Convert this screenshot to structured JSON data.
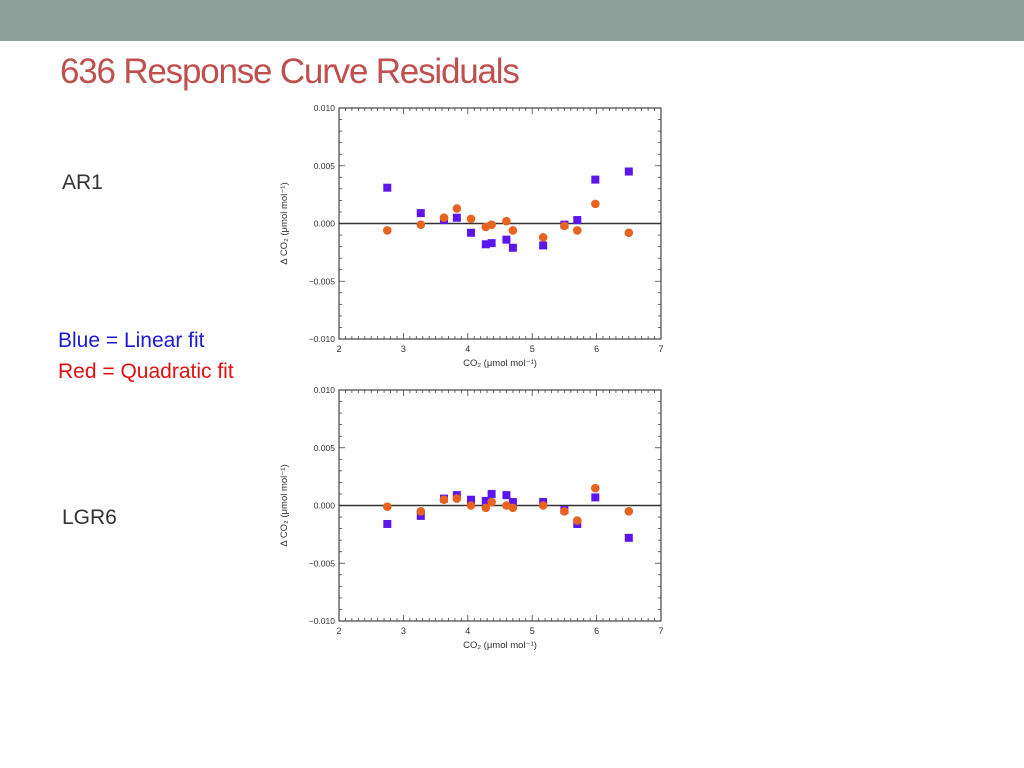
{
  "slide": {
    "title": "636 Response Curve Residuals",
    "label_top": "AR1",
    "label_bottom": "LGR6",
    "legend_blue": "Blue = Linear fit",
    "legend_red": "Red = Quadratic fit"
  },
  "colors": {
    "top_bar": "#8fa09a",
    "title": "#c0504d",
    "linear": "#5b16f0",
    "quadratic": "#e8631f",
    "legend_blue_text": "#1a1ad6",
    "legend_red_text": "#e01010",
    "label_text": "#333333"
  },
  "chart_data": [
    {
      "type": "scatter",
      "panel": "AR1",
      "xlabel": "CO₂ (μmol mol⁻¹)",
      "ylabel": "Δ CO₂ (μmol mol⁻¹)",
      "xlim": [
        2,
        7
      ],
      "ylim": [
        -0.01,
        0.01
      ],
      "x_ticks": [
        "2",
        "3",
        "4",
        "5",
        "6",
        "7"
      ],
      "y_ticks": [
        "0.010",
        "0.005",
        "0.000",
        "−0.005",
        "−0.010"
      ],
      "zero_line": true,
      "series": [
        {
          "name": "Linear fit",
          "marker": "square",
          "points": [
            [
              2.75,
              0.0031
            ],
            [
              3.27,
              0.0009
            ],
            [
              3.63,
              0.0003
            ],
            [
              3.83,
              0.0005
            ],
            [
              4.05,
              -0.0008
            ],
            [
              4.28,
              -0.0018
            ],
            [
              4.37,
              -0.0017
            ],
            [
              4.6,
              -0.0014
            ],
            [
              4.7,
              -0.0021
            ],
            [
              5.17,
              -0.0019
            ],
            [
              5.5,
              -0.0001
            ],
            [
              5.7,
              0.0003
            ],
            [
              5.98,
              0.0038
            ],
            [
              6.5,
              0.0045
            ]
          ]
        },
        {
          "name": "Quadratic fit",
          "marker": "circle",
          "points": [
            [
              2.75,
              -0.0006
            ],
            [
              3.27,
              -0.0001
            ],
            [
              3.63,
              0.0005
            ],
            [
              3.83,
              0.0013
            ],
            [
              4.05,
              0.0004
            ],
            [
              4.28,
              -0.0003
            ],
            [
              4.37,
              -0.0001
            ],
            [
              4.6,
              0.0002
            ],
            [
              4.7,
              -0.0006
            ],
            [
              5.17,
              -0.0012
            ],
            [
              5.5,
              -0.0002
            ],
            [
              5.7,
              -0.0006
            ],
            [
              5.98,
              0.0017
            ],
            [
              6.5,
              -0.0008
            ]
          ]
        }
      ]
    },
    {
      "type": "scatter",
      "panel": "LGR6",
      "xlabel": "CO₂ (μmol mol⁻¹)",
      "ylabel": "Δ CO₂ (μmol mol⁻¹)",
      "xlim": [
        2,
        7
      ],
      "ylim": [
        -0.01,
        0.01
      ],
      "x_ticks": [
        "2",
        "3",
        "4",
        "5",
        "6",
        "7"
      ],
      "y_ticks": [
        "0.010",
        "0.005",
        "0.000",
        "−0.005",
        "−0.010"
      ],
      "zero_line": true,
      "series": [
        {
          "name": "Linear fit",
          "marker": "square",
          "points": [
            [
              2.75,
              -0.0016
            ],
            [
              3.27,
              -0.0009
            ],
            [
              3.63,
              0.0006
            ],
            [
              3.83,
              0.0009
            ],
            [
              4.05,
              0.0005
            ],
            [
              4.28,
              0.0004
            ],
            [
              4.37,
              0.001
            ],
            [
              4.6,
              0.0009
            ],
            [
              4.7,
              0.0003
            ],
            [
              5.17,
              0.0003
            ],
            [
              5.5,
              -0.0004
            ],
            [
              5.7,
              -0.0016
            ],
            [
              5.98,
              0.0007
            ],
            [
              6.5,
              -0.0028
            ]
          ]
        },
        {
          "name": "Quadratic fit",
          "marker": "circle",
          "points": [
            [
              2.75,
              -0.0001
            ],
            [
              3.27,
              -0.0005
            ],
            [
              3.63,
              0.0005
            ],
            [
              3.83,
              0.0006
            ],
            [
              4.05,
              0.0
            ],
            [
              4.28,
              -0.0002
            ],
            [
              4.37,
              0.0003
            ],
            [
              4.6,
              0.0
            ],
            [
              4.7,
              -0.0002
            ],
            [
              5.17,
              0.0
            ],
            [
              5.5,
              -0.0005
            ],
            [
              5.7,
              -0.0013
            ],
            [
              5.98,
              0.0015
            ],
            [
              6.5,
              -0.0005
            ]
          ]
        }
      ]
    }
  ]
}
